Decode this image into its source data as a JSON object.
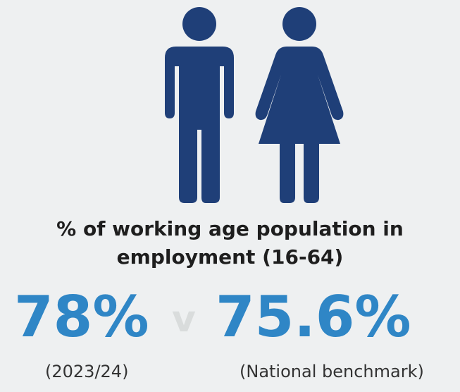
{
  "figures": {
    "man_icon": "man-icon",
    "woman_icon": "woman-icon",
    "icon_color": "#1f3f78"
  },
  "caption": {
    "line1": "% of working age population in",
    "line2": "employment (16-64)"
  },
  "stats": {
    "local_value": "78%",
    "versus": "v",
    "national_value": "75.6%",
    "local_label": "(2023/24)",
    "national_label": "(National benchmark)"
  },
  "colors": {
    "value": "#2f86c6",
    "versus": "#d9dcdc",
    "background": "#eef0f1"
  }
}
